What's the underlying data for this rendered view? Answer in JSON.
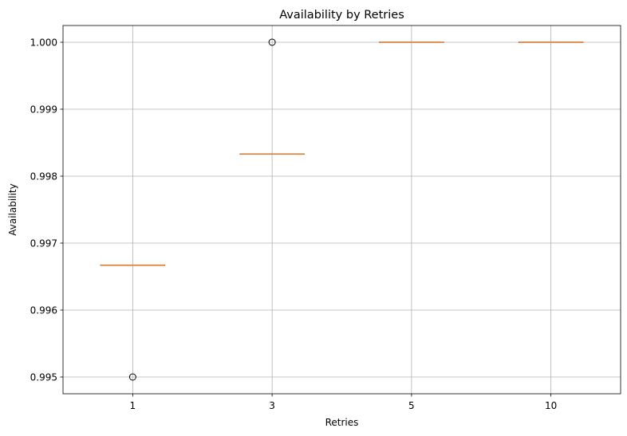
{
  "chart_data": {
    "type": "box",
    "title": "Availability by Retries",
    "xlabel": "Retries",
    "ylabel": "Availability",
    "categories": [
      "1",
      "3",
      "5",
      "10"
    ],
    "ylim": [
      0.99475,
      1.00025
    ],
    "yticks": [
      "0.995",
      "0.996",
      "0.997",
      "0.998",
      "0.999",
      "1.000"
    ],
    "ytick_values": [
      0.995,
      0.996,
      0.997,
      0.998,
      0.999,
      1.0
    ],
    "grid": true,
    "boxes": [
      {
        "category": "1",
        "q1": 0.99667,
        "median": 0.99667,
        "q3": 0.99667,
        "whisker_low": 0.99667,
        "whisker_high": 0.99667,
        "outliers": [
          0.995
        ]
      },
      {
        "category": "3",
        "q1": 0.99833,
        "median": 0.99833,
        "q3": 0.99833,
        "whisker_low": 0.99833,
        "whisker_high": 0.99833,
        "outliers": [
          1.0
        ]
      },
      {
        "category": "5",
        "q1": 1.0,
        "median": 1.0,
        "q3": 1.0,
        "whisker_low": 1.0,
        "whisker_high": 1.0,
        "outliers": []
      },
      {
        "category": "10",
        "q1": 1.0,
        "median": 1.0,
        "q3": 1.0,
        "whisker_low": 1.0,
        "whisker_high": 1.0,
        "outliers": []
      }
    ],
    "colors": {
      "median": "#d9823f",
      "box": "#000000",
      "grid": "#b0b0b0",
      "frame": "#000000"
    }
  }
}
